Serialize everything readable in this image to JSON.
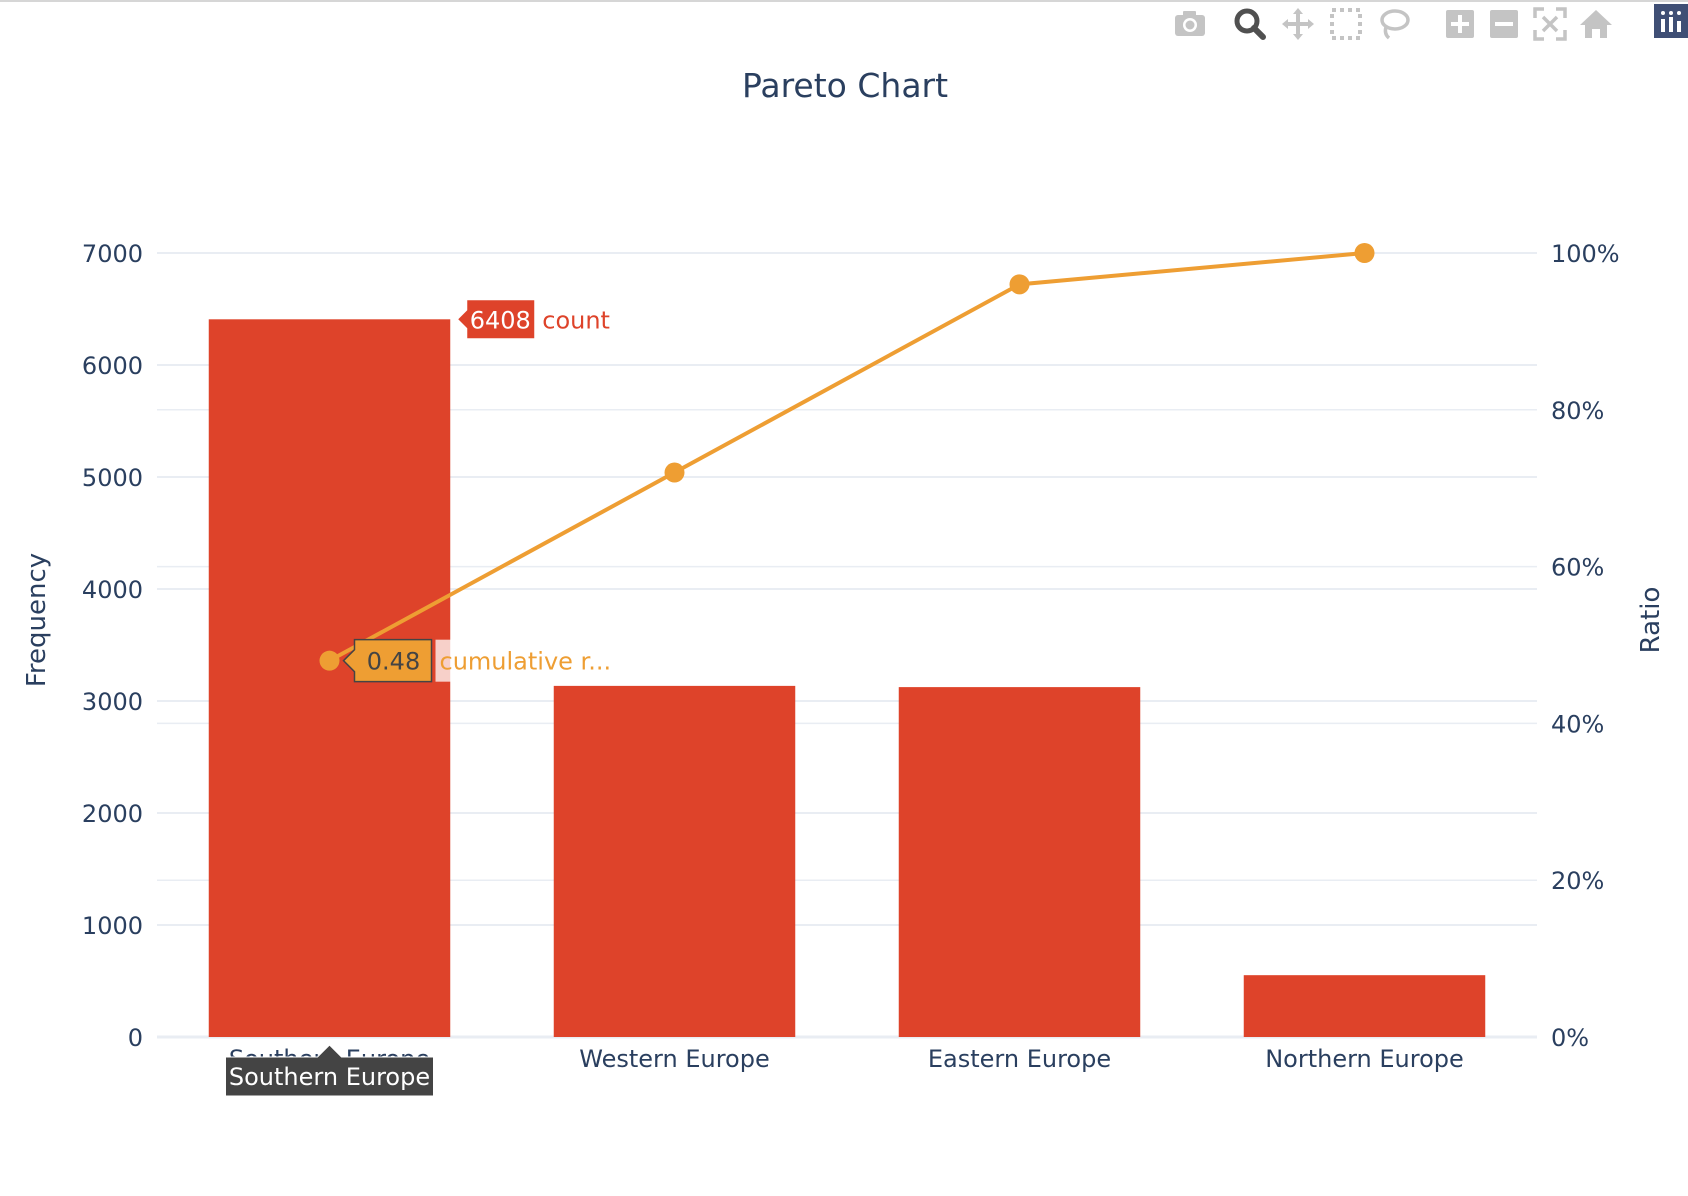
{
  "modebar": {
    "buttons": [
      {
        "name": "camera-icon"
      },
      {
        "name": "zoom-icon"
      },
      {
        "name": "pan-icon"
      },
      {
        "name": "box-select-icon"
      },
      {
        "name": "lasso-select-icon"
      },
      {
        "name": "zoom-in-icon"
      },
      {
        "name": "zoom-out-icon"
      },
      {
        "name": "autoscale-icon"
      },
      {
        "name": "reset-axes-icon"
      },
      {
        "name": "plotly-logo-icon"
      }
    ]
  },
  "chart_data": {
    "type": "bar",
    "title": "Pareto Chart",
    "categories": [
      "Southern Europe",
      "Western Europe",
      "Eastern Europe",
      "Northern Europe"
    ],
    "series": [
      {
        "name": "count",
        "type": "bar",
        "axis": "left",
        "color": "#de432a",
        "values": [
          6408,
          3135,
          3124,
          552
        ]
      },
      {
        "name": "cumulative ratio",
        "type": "line",
        "axis": "right",
        "color": "#ee9e33",
        "values": [
          0.48,
          0.72,
          0.96,
          1.0
        ]
      }
    ],
    "y_left": {
      "label": "Frequency",
      "range": [
        0,
        7000
      ],
      "ticks": [
        "0",
        "1000",
        "2000",
        "3000",
        "4000",
        "5000",
        "6000",
        "7000"
      ]
    },
    "y_right": {
      "label": "Ratio",
      "range": [
        0,
        1
      ],
      "ticks": [
        "0%",
        "20%",
        "40%",
        "60%",
        "80%",
        "100%"
      ]
    },
    "grid": true,
    "hover": {
      "bar_value": "6408",
      "bar_name": "count",
      "line_value": "0.48",
      "line_name": "cumulative r...",
      "x_label": "Southern Europe"
    },
    "colors": {
      "text": "#2a3f5f",
      "grid": "#e9edf3",
      "hover_label_bg": "#444444"
    }
  }
}
